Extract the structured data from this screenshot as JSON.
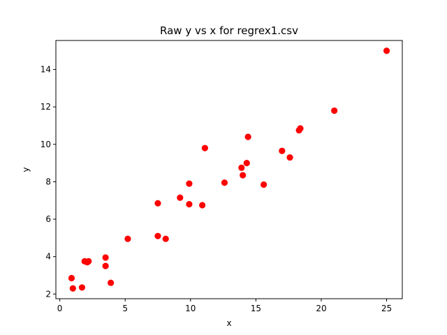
{
  "chart_data": {
    "type": "scatter",
    "title": "Raw y vs x for regrex1.csv",
    "xlabel": "x",
    "ylabel": "y",
    "xlim": [
      -0.3,
      26.2
    ],
    "ylim": [
      1.75,
      15.55
    ],
    "xticks": [
      0,
      5,
      10,
      15,
      20,
      25
    ],
    "yticks": [
      2,
      4,
      6,
      8,
      10,
      12,
      14
    ],
    "grid": false,
    "series": [
      {
        "marker_color": "#ff0000",
        "points": [
          {
            "x": 0.9,
            "y": 2.85
          },
          {
            "x": 1.0,
            "y": 2.3
          },
          {
            "x": 1.7,
            "y": 2.35
          },
          {
            "x": 1.9,
            "y": 3.75
          },
          {
            "x": 2.1,
            "y": 3.7
          },
          {
            "x": 2.2,
            "y": 3.75
          },
          {
            "x": 3.5,
            "y": 3.95
          },
          {
            "x": 3.5,
            "y": 3.5
          },
          {
            "x": 3.9,
            "y": 2.6
          },
          {
            "x": 5.2,
            "y": 4.95
          },
          {
            "x": 7.5,
            "y": 6.85
          },
          {
            "x": 7.5,
            "y": 5.1
          },
          {
            "x": 8.1,
            "y": 4.95
          },
          {
            "x": 9.2,
            "y": 7.15
          },
          {
            "x": 9.9,
            "y": 7.9
          },
          {
            "x": 9.9,
            "y": 6.8
          },
          {
            "x": 10.9,
            "y": 6.75
          },
          {
            "x": 11.1,
            "y": 9.8
          },
          {
            "x": 12.6,
            "y": 7.95
          },
          {
            "x": 13.9,
            "y": 8.75
          },
          {
            "x": 14.0,
            "y": 8.35
          },
          {
            "x": 14.3,
            "y": 9.0
          },
          {
            "x": 14.4,
            "y": 10.4
          },
          {
            "x": 15.6,
            "y": 7.85
          },
          {
            "x": 17.0,
            "y": 9.65
          },
          {
            "x": 17.6,
            "y": 9.3
          },
          {
            "x": 18.3,
            "y": 10.75
          },
          {
            "x": 18.4,
            "y": 10.85
          },
          {
            "x": 21.0,
            "y": 11.8
          },
          {
            "x": 25.0,
            "y": 15.0
          }
        ]
      }
    ]
  }
}
